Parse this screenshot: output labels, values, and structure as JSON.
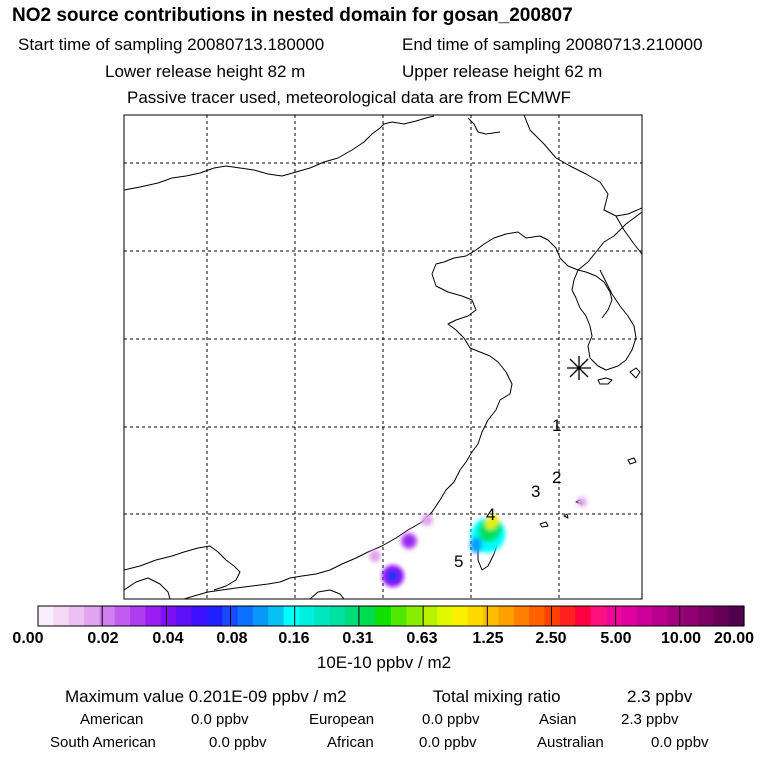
{
  "header": {
    "title": "NO2 source contributions in nested domain for gosan_200807",
    "start_label": "Start time of sampling 20080713.180000",
    "end_label": "End time of sampling 20080713.210000",
    "lower_label": "Lower release height   82 m",
    "upper_label": "Upper release height   62 m",
    "note": "Passive tracer used, meteorological data are from ECMWF"
  },
  "map": {
    "station_marker": "asterisk-symbol",
    "labels": [
      "1",
      "2",
      "3",
      "4",
      "5"
    ]
  },
  "colorbar": {
    "tick_labels": [
      "0.00",
      "0.02",
      "0.04",
      "0.08",
      "0.16",
      "0.31",
      "0.63",
      "1.25",
      "2.50",
      "5.00",
      "10.00",
      "20.00"
    ],
    "colors": [
      "#fbeefb",
      "#f4d8f6",
      "#ecc0f2",
      "#e2a6ee",
      "#d080f0",
      "#c25cee",
      "#b03cf0",
      "#9a1ef4",
      "#7d10f4",
      "#5e10f8",
      "#3c10fc",
      "#2020ff",
      "#1848ff",
      "#0c70ff",
      "#0898fa",
      "#08c0f4",
      "#00ffff",
      "#00f0e0",
      "#00e8c0",
      "#00e0a0",
      "#00dc78",
      "#00dc50",
      "#10e000",
      "#50e800",
      "#88ee00",
      "#b8f400",
      "#e0f800",
      "#fcf000",
      "#ffd800",
      "#ffbc00",
      "#ffa000",
      "#ff8000",
      "#ff6000",
      "#ff4000",
      "#ff2020",
      "#ff0040",
      "#ff1080",
      "#f00898",
      "#e000a0",
      "#cc0098",
      "#b8008c",
      "#a40080",
      "#900070",
      "#7c0064",
      "#680058",
      "#50004a"
    ],
    "units": "10E-10 ppbv / m2"
  },
  "stats": {
    "max_label": "Maximum value  0.201E-09 ppbv / m2",
    "total_label": "Total mixing ratio",
    "total_value": "2.3 ppbv",
    "regions": [
      {
        "name": "American",
        "value": "0.0 ppbv"
      },
      {
        "name": "European",
        "value": "0.0 ppbv"
      },
      {
        "name": "Asian",
        "value": "2.3 ppbv"
      },
      {
        "name": "South American",
        "value": "0.0 ppbv"
      },
      {
        "name": "African",
        "value": "0.0 ppbv"
      },
      {
        "name": "Australian",
        "value": "0.0 ppbv"
      }
    ]
  }
}
